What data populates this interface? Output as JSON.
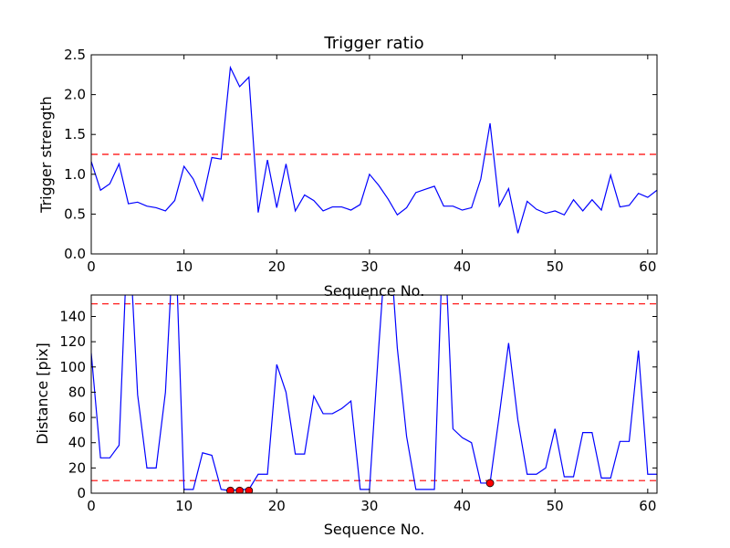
{
  "colors": {
    "line": "#0000ff",
    "threshold": "#ff0000",
    "marker": "#ff0000",
    "marker_edge": "#000000",
    "axes": "#000000",
    "background": "#ffffff"
  },
  "chart_data": [
    {
      "type": "line",
      "title": "Trigger ratio",
      "xlabel": "Sequence No.",
      "ylabel": "Trigger strength",
      "xlim": [
        0,
        61
      ],
      "ylim": [
        0,
        2.5
      ],
      "xticks": [
        0,
        10,
        20,
        30,
        40,
        50,
        60
      ],
      "xtick_labels": [
        "0",
        "10",
        "20",
        "30",
        "40",
        "50",
        "60"
      ],
      "yticks": [
        0.0,
        0.5,
        1.0,
        1.5,
        2.0,
        2.5
      ],
      "ytick_labels": [
        "0.0",
        "0.5",
        "1.0",
        "1.5",
        "2.0",
        "2.5"
      ],
      "grid": false,
      "x": [
        0,
        1,
        2,
        3,
        4,
        5,
        6,
        7,
        8,
        9,
        10,
        11,
        12,
        13,
        14,
        15,
        16,
        17,
        18,
        19,
        20,
        21,
        22,
        23,
        24,
        25,
        26,
        27,
        28,
        29,
        30,
        31,
        32,
        33,
        34,
        35,
        36,
        37,
        38,
        39,
        40,
        41,
        42,
        43,
        44,
        45,
        46,
        47,
        48,
        49,
        50,
        51,
        52,
        53,
        54,
        55,
        56,
        57,
        58,
        59,
        60,
        61
      ],
      "series": [
        {
          "values": [
            1.16,
            0.8,
            0.88,
            1.13,
            0.63,
            0.65,
            0.6,
            0.58,
            0.54,
            0.67,
            1.1,
            0.94,
            0.67,
            1.21,
            1.19,
            2.34,
            2.1,
            2.22,
            0.52,
            1.18,
            0.58,
            1.13,
            0.54,
            0.74,
            0.67,
            0.54,
            0.59,
            0.59,
            0.55,
            0.62,
            1.0,
            0.86,
            0.69,
            0.49,
            0.58,
            0.77,
            0.81,
            0.85,
            0.6,
            0.6,
            0.55,
            0.58,
            0.94,
            1.64,
            0.6,
            0.82,
            0.26,
            0.66,
            0.56,
            0.51,
            0.54,
            0.49,
            0.68,
            0.54,
            0.68,
            0.55,
            0.99,
            0.59,
            0.61,
            0.76,
            0.71,
            0.8
          ]
        }
      ],
      "thresholds": [
        1.25
      ]
    },
    {
      "type": "line",
      "title": "",
      "xlabel": "Sequence No.",
      "ylabel": "Distance [pix]",
      "xlim": [
        0,
        61
      ],
      "ylim": [
        0,
        157
      ],
      "xticks": [
        0,
        10,
        20,
        30,
        40,
        50,
        60
      ],
      "xtick_labels": [
        "0",
        "10",
        "20",
        "30",
        "40",
        "50",
        "60"
      ],
      "yticks": [
        0,
        20,
        40,
        60,
        80,
        100,
        120,
        140
      ],
      "ytick_labels": [
        "0",
        "20",
        "40",
        "60",
        "80",
        "100",
        "120",
        "140"
      ],
      "grid": false,
      "x": [
        0,
        1,
        2,
        3,
        4,
        5,
        6,
        7,
        8,
        9,
        10,
        11,
        12,
        13,
        14,
        15,
        16,
        17,
        18,
        19,
        20,
        21,
        22,
        23,
        24,
        25,
        26,
        27,
        28,
        29,
        30,
        31,
        32,
        33,
        34,
        35,
        36,
        37,
        38,
        39,
        40,
        41,
        42,
        43,
        44,
        45,
        46,
        47,
        48,
        49,
        50,
        51,
        52,
        53,
        54,
        55,
        56,
        57,
        58,
        59,
        60,
        61
      ],
      "series": [
        {
          "values": [
            111,
            28,
            28,
            38,
            220,
            78,
            20,
            20,
            80,
            220,
            3,
            3,
            32,
            30,
            3,
            2,
            3,
            3,
            15,
            15,
            102,
            80,
            31,
            31,
            77,
            63,
            63,
            67,
            73,
            3,
            3,
            116,
            220,
            115,
            45,
            3,
            3,
            3,
            220,
            51,
            44,
            40,
            8,
            8,
            62,
            119,
            58,
            15,
            15,
            20,
            51,
            13,
            13,
            48,
            48,
            12,
            12,
            41,
            41,
            113,
            15,
            15
          ]
        }
      ],
      "markers": {
        "x": [
          15,
          16,
          17,
          43
        ],
        "y": [
          2,
          2,
          2,
          8
        ]
      },
      "thresholds": [
        150,
        10
      ]
    }
  ]
}
